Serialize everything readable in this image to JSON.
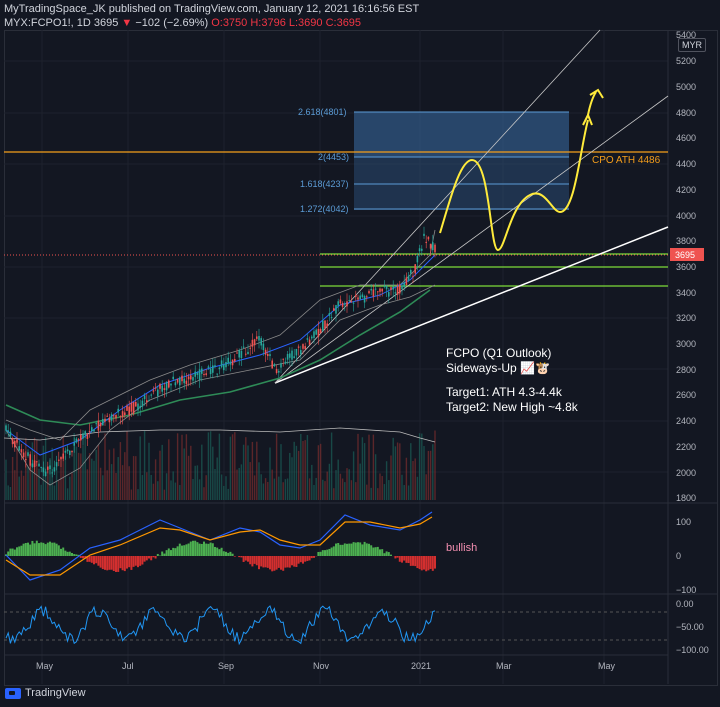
{
  "header": {
    "line1": "MyTradingSpace_JK published on TradingView.com, January 12, 2021 16:16:56 EST",
    "symbol": "MYX:FCPO1!, 1D",
    "last": "3695",
    "change": "−102 (−2.69%)",
    "ohlc": "O:3750 H:3796 L:3690 C:3695"
  },
  "currency": "MYR",
  "price_axis": [
    "5400",
    "5200",
    "5000",
    "4800",
    "4600",
    "4400",
    "4200",
    "4000",
    "3800",
    "3600",
    "3400",
    "3200",
    "3000",
    "2800",
    "2600",
    "2400",
    "2200",
    "2000",
    "1800"
  ],
  "price_tag": "3695",
  "macd_axis": [
    "100",
    "0",
    "−100"
  ],
  "rsi_axis": [
    "0.00",
    "−50.00",
    "−100.00"
  ],
  "time_axis": [
    "May",
    "Jul",
    "Sep",
    "Nov",
    "2021",
    "Mar",
    "May"
  ],
  "fib_levels": [
    "2.618(4801)",
    "2(4453)",
    "1.618(4237)",
    "1.272(4042)"
  ],
  "cpo_ath": "CPO ATH 4486",
  "macd_label": "bullish",
  "annotation": {
    "title": "FCPO (Q1 Outlook)",
    "subtitle": "Sideways-Up 📈🐮",
    "target1": "Target1: ATH 4.3-4.4k",
    "target2": "Target2: New High ~4.8k"
  },
  "footer": {
    "brand": "TradingView"
  },
  "colors": {
    "bg": "#131722",
    "up": "#26a69a",
    "down": "#ef5350",
    "fib": "#5b9bd5",
    "orange": "#f59e1b",
    "green": "#7ddc3a",
    "yellow": "#ffeb3b"
  }
}
